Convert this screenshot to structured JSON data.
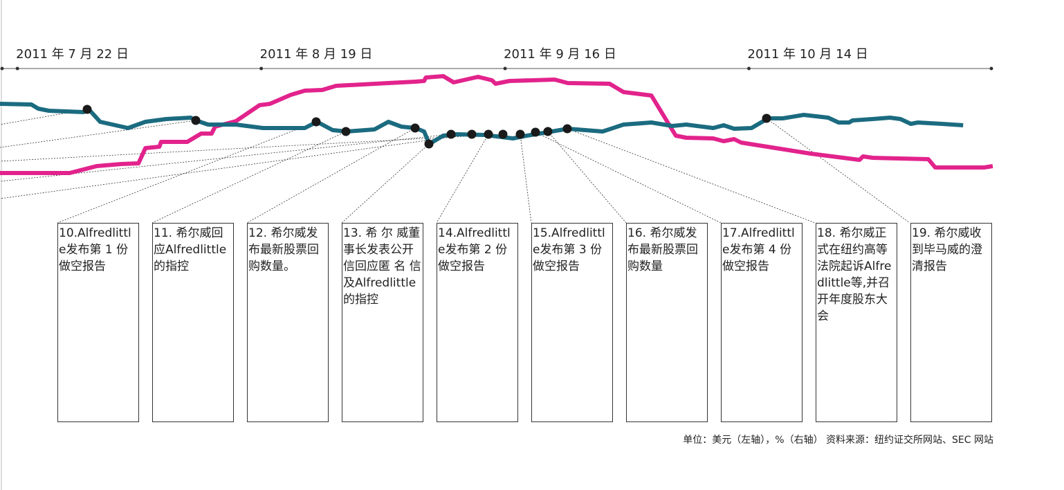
{
  "chart_data": {
    "type": "line",
    "xlim": [
      -2,
      112
    ],
    "xticks": [
      {
        "value": 0,
        "label": "2011 年 7 月 22 日"
      },
      {
        "value": 28,
        "label": "2011 年 8 月 19 日"
      },
      {
        "value": 56,
        "label": "2011 年 9 月 16 日"
      },
      {
        "value": 84,
        "label": "2011 年 10 月 14 日"
      }
    ],
    "ylim": [
      0,
      100
    ],
    "series": [
      {
        "color": "#1b6b80",
        "x": [
          -2.0,
          1.6,
          2.4,
          3.6,
          7.6,
          8.2,
          9.5,
          12.7,
          14.7,
          17.1,
          19.9,
          20.5,
          21.9,
          25.1,
          28.2,
          33.0,
          34.4,
          36.2,
          37.8,
          41.0,
          42.6,
          44.1,
          45.7,
          46.7,
          47.3,
          48.9,
          50.5,
          53.7,
          56.9,
          58.5,
          60.9,
          63.2,
          67.2,
          69.6,
          72.8,
          75.2,
          76.8,
          79.9,
          81.1,
          82.3,
          84.3,
          86.2,
          87.9,
          90.3,
          93.1,
          94.3,
          95.5,
          95.9,
          98.2,
          100.2,
          101.4,
          102.6,
          103.4,
          106.2,
          108.6
        ],
        "values": [
          75,
          74.5,
          71.5,
          70,
          69,
          71,
          62,
          57.5,
          62,
          64,
          65,
          63,
          60,
          60,
          57.5,
          57.5,
          62,
          56,
          55,
          56.5,
          62,
          58.5,
          57.5,
          55,
          46,
          52,
          53,
          52.5,
          50,
          52,
          54.5,
          57,
          55,
          60,
          61.5,
          59,
          60,
          57.5,
          59.5,
          57,
          57.5,
          64.5,
          64.5,
          67,
          65,
          61.5,
          61.5,
          63,
          64,
          65,
          64,
          60.5,
          61.5,
          60.5,
          59.5
        ]
      },
      {
        "color": "#e2238c",
        "x": [
          -2.0,
          6.0,
          9.1,
          11.9,
          13.9,
          14.7,
          16.3,
          16.5,
          19.5,
          21.1,
          22.3,
          22.7,
          25.1,
          27.8,
          29.0,
          31.4,
          33.0,
          35.0,
          36.6,
          42.6,
          45.7,
          46.7,
          46.9,
          48.9,
          50.1,
          52.9,
          54.5,
          54.9,
          56.5,
          61.7,
          63.2,
          68.0,
          69.6,
          72.8,
          75.6,
          76.8,
          79.9,
          81.1,
          82.3,
          83.1,
          91.1,
          96.7,
          97.1,
          98.2,
          104.6,
          105.4,
          111.0,
          112.0
        ],
        "values": [
          25,
          25,
          30,
          31.5,
          32,
          43,
          44,
          47.5,
          47.5,
          53.5,
          53.5,
          58.5,
          62.5,
          74,
          75,
          81.5,
          84.5,
          85,
          88,
          90,
          91,
          91.5,
          94,
          95,
          90.5,
          94.5,
          92,
          89.5,
          91.5,
          92.5,
          90,
          89.5,
          83.5,
          81,
          52,
          50.5,
          50,
          48,
          49.5,
          47,
          39,
          34.5,
          37,
          36,
          35,
          29,
          29,
          30
        ]
      }
    ]
  },
  "events": [
    "10.Alfredlittle发布第 1 份做空报告",
    "11. 希尔威回应Alfredlittle的指控",
    "12. 希尔威发布最新股票回购数量。",
    "13. 希 尔 威董事长发表公开信回应匿 名 信 及Alfredlittle的指控",
    "14.Alfredlittle发布第 2 份做空报告",
    "15.Alfredlittle发布第 3 份做空报告",
    "16. 希尔威发布最新股票回购数量",
    "17.Alfredlittle发布第 4 份做空报告",
    "18. 希尔威正式在纽约高等法院起诉Alfredlittle等,并召开年度股东大会",
    "19. 希尔威收到毕马威的澄清报告"
  ],
  "note": "单位：美元（左轴），%（右轴） 资料来源：纽约证交所网站、SEC 网站"
}
